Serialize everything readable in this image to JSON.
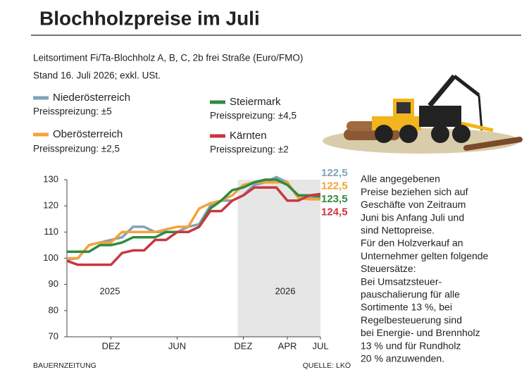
{
  "chart_data": {
    "type": "line",
    "title": "Blochholzpreise im Juli",
    "subtitle": [
      "Leitsortiment Fi/Ta-Blochholz A, B, C, 2b frei Straße (Euro/FMO)",
      "Stand 16. Juli 2026; exkl. USt."
    ],
    "categories": [
      null,
      null,
      null,
      null,
      "DEZ",
      null,
      null,
      null,
      null,
      null,
      "JUN",
      null,
      null,
      null,
      null,
      null,
      "DEZ",
      null,
      null,
      null,
      "APR",
      null,
      null,
      "JUL"
    ],
    "annotations": [
      "2025",
      "2026"
    ],
    "ylim": [
      70,
      130
    ],
    "yticks": [
      70,
      80,
      90,
      100,
      110,
      120,
      130
    ],
    "grid": false,
    "series": [
      {
        "name": "Niederösterreich",
        "spread": "Preisspreizung: ±5",
        "color": "#7fa3bb",
        "values": [
          99.5,
          100,
          105,
          106,
          107,
          108,
          112,
          112,
          110,
          110,
          110,
          112,
          113,
          120,
          122,
          122,
          124,
          128,
          129,
          131,
          129,
          123,
          123,
          122.5
        ],
        "value_labels": [
          null,
          null,
          null,
          null,
          null,
          null,
          null,
          null,
          null,
          null,
          null,
          null,
          null,
          null,
          null,
          null,
          null,
          null,
          null,
          null,
          null,
          null,
          null,
          "122,5"
        ]
      },
      {
        "name": "Oberösterreich",
        "spread": "Preisspreizung: ±2,5",
        "color": "#f5a23a",
        "values": [
          100,
          100,
          105,
          106,
          106,
          110,
          110,
          110,
          110,
          111,
          112,
          112,
          119,
          121,
          122,
          124,
          128,
          129,
          129,
          129,
          129,
          123,
          122.5,
          122.5
        ],
        "value_labels": [
          null,
          null,
          null,
          null,
          null,
          null,
          null,
          null,
          null,
          null,
          null,
          null,
          null,
          null,
          null,
          null,
          null,
          null,
          null,
          null,
          null,
          null,
          null,
          "122,5"
        ]
      },
      {
        "name": "Steiermark",
        "spread": "Preisspreizung: ±4,5",
        "color": "#2e8b3e",
        "values": [
          102.5,
          102.5,
          102.5,
          105,
          105,
          106,
          108,
          108,
          108,
          110,
          110,
          110,
          112,
          119,
          122,
          126,
          127,
          129,
          130,
          130,
          128,
          124,
          124,
          123.5
        ],
        "value_labels": [
          null,
          null,
          null,
          null,
          null,
          null,
          null,
          null,
          null,
          null,
          null,
          null,
          null,
          null,
          null,
          null,
          null,
          null,
          null,
          null,
          null,
          null,
          null,
          "123,5"
        ]
      },
      {
        "name": "Kärnten",
        "spread": "Preisspreizung: ±2",
        "color": "#c8373f",
        "values": [
          99,
          97.5,
          97.5,
          97.5,
          97.5,
          102,
          103,
          103,
          107,
          107,
          110,
          110,
          112,
          118,
          118,
          122,
          124,
          127,
          127,
          127,
          122,
          122,
          124,
          124.5
        ],
        "value_labels": [
          null,
          null,
          null,
          null,
          null,
          null,
          null,
          null,
          null,
          null,
          null,
          null,
          null,
          null,
          null,
          null,
          null,
          null,
          null,
          null,
          null,
          null,
          null,
          "124,5"
        ]
      }
    ],
    "note": [
      "Alle angegebenen",
      "Preise beziehen sich auf",
      "Geschäfte von Zeitraum",
      "Juni bis Anfang Juli und",
      "sind Nettopreise.",
      "Für den Holzverkauf an",
      "Unternehmer gelten folgende",
      "Steuersätze:",
      "Bei Umsatzsteuer-",
      "pauschalierung für alle",
      "Sortimente 13 %, bei",
      "Regelbesteuerung sind",
      "bei Energie- und Brennholz",
      "13 % und für Rundholz",
      "20 % anzuwenden."
    ],
    "publisher": "BAUERNZEITUNG",
    "source": "QUELLE: LKÖ"
  }
}
